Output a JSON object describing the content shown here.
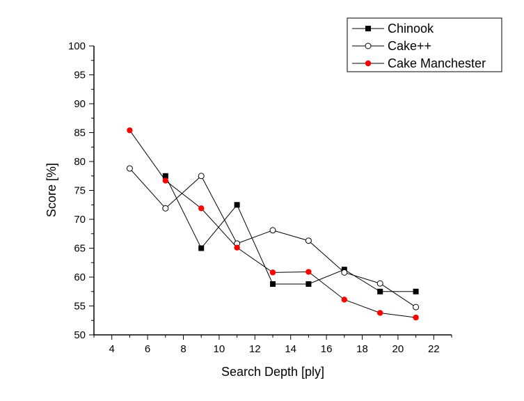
{
  "chart_data": {
    "type": "line",
    "xlabel": "Search Depth [ply]",
    "ylabel": "Score [%]",
    "xlim": [
      3,
      23
    ],
    "ylim": [
      50,
      100
    ],
    "xticks": [
      4,
      6,
      8,
      10,
      12,
      14,
      16,
      18,
      20,
      22
    ],
    "yticks": [
      50,
      55,
      60,
      65,
      70,
      75,
      80,
      85,
      90,
      95,
      100
    ],
    "x_minor_step": 1,
    "y_minor_step": 2.5,
    "grid": false,
    "legend_position": "top-right",
    "series": [
      {
        "name": "Chinook",
        "marker": "square-filled",
        "color": "#000000",
        "x": [
          7,
          9,
          11,
          13,
          15,
          17,
          19,
          21
        ],
        "y": [
          77.5,
          65,
          72.5,
          58.8,
          58.8,
          61.3,
          57.5,
          57.5
        ]
      },
      {
        "name": "Cake++",
        "marker": "circle-open",
        "color": "#000000",
        "x": [
          5,
          7,
          9,
          11,
          13,
          15,
          17,
          19,
          21
        ],
        "y": [
          78.8,
          71.9,
          77.5,
          65.8,
          68.1,
          66.3,
          60.8,
          58.9,
          54.8
        ]
      },
      {
        "name": "Cake Manchester",
        "marker": "circle-filled",
        "color": "#ff0000",
        "x": [
          5,
          7,
          9,
          11,
          13,
          15,
          17,
          19,
          21
        ],
        "y": [
          85.4,
          76.7,
          71.9,
          65.1,
          60.8,
          60.9,
          56.1,
          53.8,
          53.0
        ]
      }
    ]
  }
}
